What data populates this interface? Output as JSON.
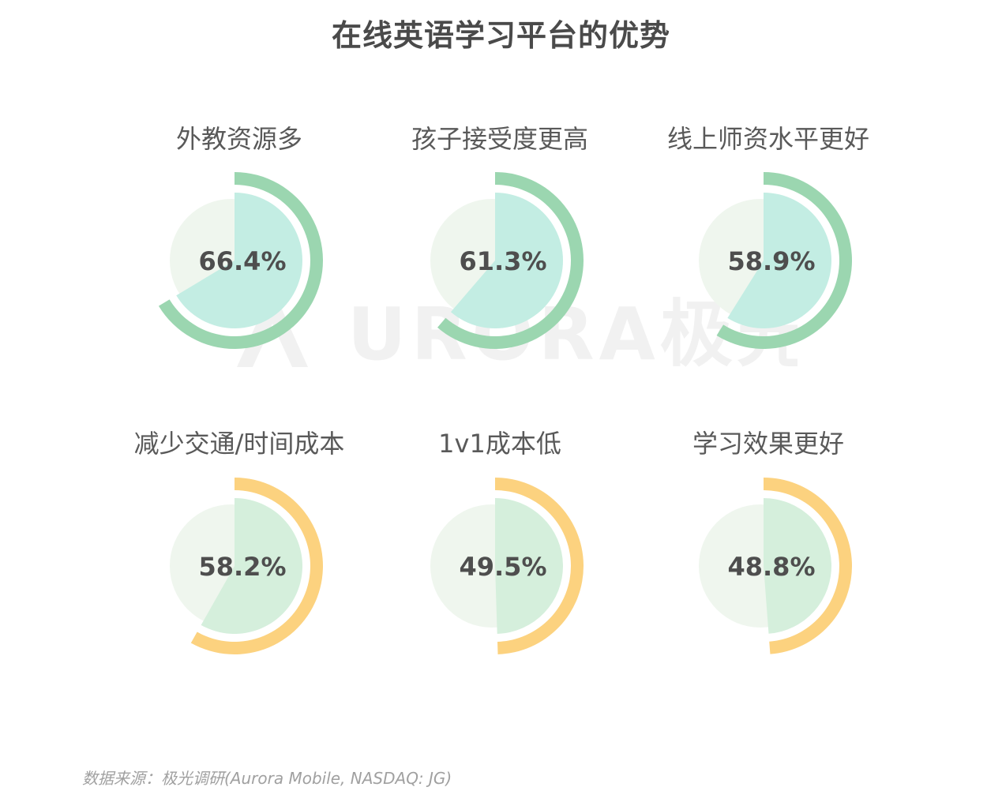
{
  "title": "在线英语学习平台的优势",
  "watermark": "URORA极光",
  "source": "数据来源：极光调研(Aurora Mobile, NASDAQ: JG)",
  "colors": {
    "green_ring": "#9bd6b0",
    "green_fill": "#c3ede3",
    "orange_ring": "#fcd27f",
    "orange_fill": "#d5efdc",
    "background_disc": "#eff6ee"
  },
  "chart_data": {
    "type": "pie",
    "title": "在线英语学习平台的优势",
    "categories": [
      "外教资源多",
      "孩子接受度更高",
      "线上师资水平更好",
      "减少交通/时间成本",
      "1v1成本低",
      "学习效果更好"
    ],
    "values": [
      66.4,
      61.3,
      58.9,
      58.2,
      49.5,
      48.8
    ],
    "value_labels": [
      "66.4%",
      "61.3%",
      "58.9%",
      "58.2%",
      "49.5%",
      "48.8%"
    ],
    "unit": "%"
  }
}
